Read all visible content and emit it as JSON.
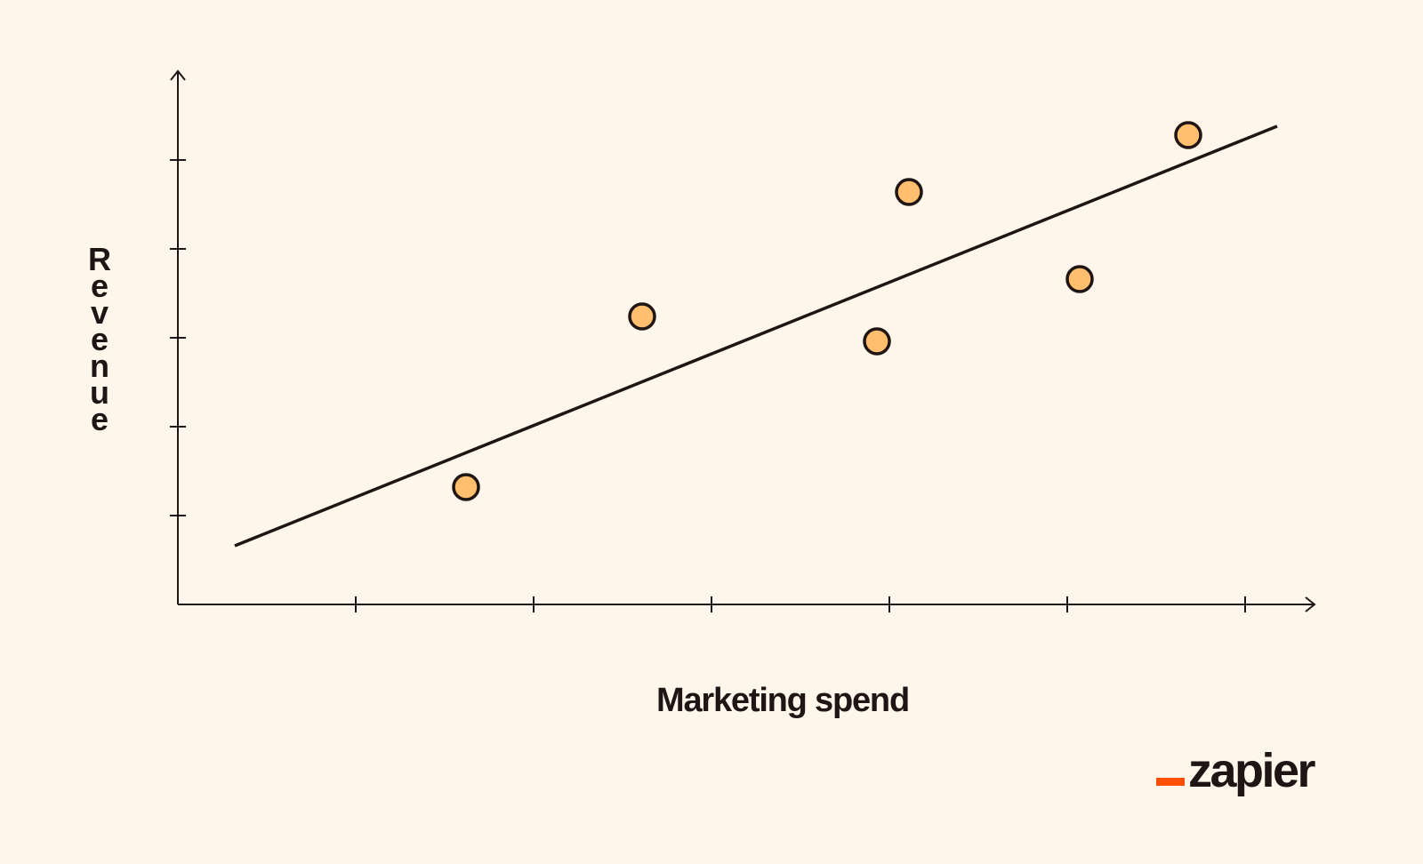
{
  "colors": {
    "background": "#fff5eb",
    "ink": "#201515",
    "point_fill": "#ffbf6e",
    "brand_accent": "#ff4f00"
  },
  "brand": {
    "logo_text": "zapier"
  },
  "chart_data": {
    "type": "scatter",
    "title": "",
    "xlabel": "Marketing spend",
    "ylabel": "Revenue",
    "xlim": [
      0,
      6.4
    ],
    "ylim": [
      0,
      6.0
    ],
    "x_ticks": [
      1,
      2,
      3,
      4,
      5,
      6
    ],
    "y_ticks": [
      1,
      2,
      3,
      4,
      5
    ],
    "tick_labels_shown": false,
    "grid": false,
    "legend": "none",
    "points": [
      {
        "x": 1.62,
        "y": 1.32
      },
      {
        "x": 2.61,
        "y": 3.24
      },
      {
        "x": 3.93,
        "y": 2.96
      },
      {
        "x": 4.11,
        "y": 4.64
      },
      {
        "x": 5.07,
        "y": 3.66
      },
      {
        "x": 5.68,
        "y": 5.28
      }
    ],
    "trend_line": {
      "x": [
        0.32,
        6.18
      ],
      "y": [
        0.66,
        5.38
      ]
    }
  }
}
